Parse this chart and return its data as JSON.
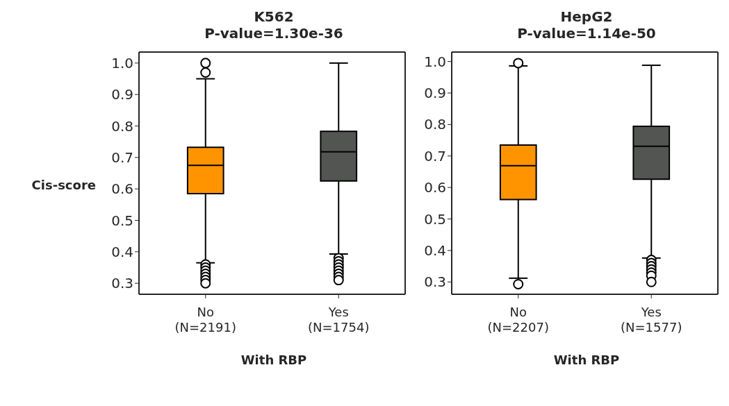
{
  "chart_data": [
    {
      "type": "box",
      "title": "K562\nP-value=1.30e-36",
      "xlabel": "With RBP",
      "ylabel": "Cis-score",
      "categories": [
        "No\n(N=2191)",
        "Yes\n(N=1754)"
      ],
      "colors": [
        "#ff9400",
        "#535553"
      ],
      "boxes": [
        {
          "low": 0.365,
          "q1": 0.585,
          "median": 0.675,
          "q3": 0.732,
          "high": 0.95,
          "outliers": [
            1.0,
            0.97,
            0.36,
            0.35,
            0.34,
            0.33,
            0.32,
            0.31,
            0.3
          ]
        },
        {
          "low": 0.393,
          "q1": 0.625,
          "median": 0.718,
          "q3": 0.783,
          "high": 1.0,
          "outliers": [
            0.38,
            0.37,
            0.36,
            0.35,
            0.34,
            0.33,
            0.32,
            0.31
          ]
        }
      ],
      "ylim": [
        0.265,
        1.035
      ],
      "yticks": [
        0.3,
        0.4,
        0.5,
        0.6,
        0.7,
        0.8,
        0.9,
        {
          "value": 1,
          "label": "1.0"
        }
      ],
      "grid": false
    },
    {
      "type": "box",
      "title": "HepG2\nP-value=1.14e-50",
      "xlabel": "With RBP",
      "categories": [
        "No\n(N=2207)",
        "Yes\n(N=1577)"
      ],
      "colors": [
        "#ff9400",
        "#535553"
      ],
      "boxes": [
        {
          "low": 0.312,
          "q1": 0.562,
          "median": 0.669,
          "q3": 0.735,
          "high": 0.986,
          "outliers": [
            0.995,
            0.293
          ]
        },
        {
          "low": 0.376,
          "q1": 0.626,
          "median": 0.731,
          "q3": 0.794,
          "high": 0.988,
          "outliers": [
            0.37,
            0.36,
            0.35,
            0.34,
            0.33,
            0.32,
            0.3
          ]
        }
      ],
      "ylim": [
        0.261,
        1.03
      ],
      "yticks": [
        0.3,
        0.4,
        0.5,
        0.6,
        0.7,
        0.8,
        0.9,
        {
          "value": 1,
          "label": "1.0"
        }
      ],
      "grid": false
    }
  ]
}
